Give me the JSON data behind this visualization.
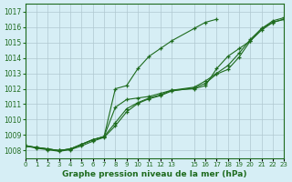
{
  "background_color": "#d6eef5",
  "grid_color": "#b0c8d0",
  "line_color": "#1e6b1e",
  "text_color": "#1e6b1e",
  "xlabel": "Graphe pression niveau de la mer (hPa)",
  "ylim": [
    1007.5,
    1017.5
  ],
  "xlim": [
    0,
    23
  ],
  "yticks": [
    1008,
    1009,
    1010,
    1011,
    1012,
    1013,
    1014,
    1015,
    1016,
    1017
  ],
  "xtick_positions": [
    0,
    1,
    2,
    3,
    4,
    5,
    6,
    7,
    8,
    9,
    10,
    11,
    12,
    13,
    15,
    16,
    17,
    18,
    19,
    20,
    21,
    22,
    23
  ],
  "xtick_labels": [
    "0",
    "1",
    "2",
    "3",
    "4",
    "5",
    "6",
    "7",
    "8",
    "9",
    "10",
    "11",
    "12",
    "13",
    "15",
    "16",
    "17",
    "18",
    "19",
    "20",
    "21",
    "22",
    "23"
  ],
  "x_values": [
    0,
    1,
    2,
    3,
    4,
    5,
    6,
    7,
    8,
    9,
    10,
    11,
    12,
    13,
    15,
    16,
    17,
    18,
    19,
    20,
    21,
    22,
    23
  ],
  "series": [
    [
      1008.3,
      1008.2,
      1008.1,
      1008.0,
      1008.1,
      1008.4,
      1008.7,
      1008.9,
      1012.0,
      1012.2,
      1013.3,
      1014.1,
      1014.6,
      1015.1,
      1015.9,
      1016.3,
      1016.5,
      null,
      null,
      null,
      null,
      null,
      null
    ],
    [
      1008.3,
      1008.2,
      1008.1,
      1008.0,
      1008.1,
      1008.4,
      1008.7,
      1008.9,
      1010.8,
      1011.3,
      1011.4,
      1011.5,
      1011.7,
      1011.9,
      1012.0,
      1012.2,
      1013.3,
      1014.1,
      1014.6,
      1015.1,
      1015.9,
      1016.3,
      1016.5
    ],
    [
      1008.3,
      1008.2,
      1008.1,
      1008.0,
      1008.1,
      1008.4,
      1008.7,
      1008.9,
      1009.8,
      1010.7,
      1011.1,
      1011.4,
      1011.6,
      1011.9,
      1012.1,
      1012.5,
      1013.0,
      1013.5,
      1014.3,
      1015.2,
      1015.9,
      1016.4,
      1016.6
    ],
    [
      1008.3,
      1008.15,
      1008.05,
      1007.95,
      1008.05,
      1008.3,
      1008.6,
      1008.85,
      1009.6,
      1010.5,
      1011.05,
      1011.35,
      1011.55,
      1011.85,
      1012.05,
      1012.35,
      1012.95,
      1013.25,
      1014.05,
      1015.1,
      1015.8,
      1016.3,
      1016.5
    ]
  ]
}
